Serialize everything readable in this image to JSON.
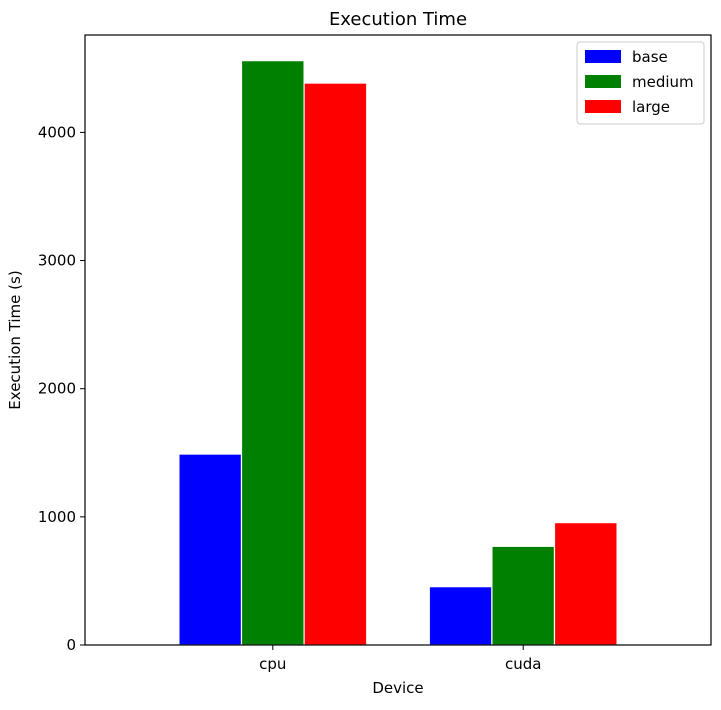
{
  "chart_data": {
    "type": "bar",
    "title": "Execution Time",
    "xlabel": "Device",
    "ylabel": "Execution Time (s)",
    "categories": [
      "cpu",
      "cuda"
    ],
    "series": [
      {
        "name": "base",
        "color": "#0000ff",
        "values": [
          1490,
          455
        ]
      },
      {
        "name": "medium",
        "color": "#008000",
        "values": [
          4560,
          770
        ]
      },
      {
        "name": "large",
        "color": "#ff0000",
        "values": [
          4385,
          955
        ]
      }
    ],
    "ylim": [
      0,
      4760
    ],
    "yticks": [
      0,
      1000,
      2000,
      3000,
      4000
    ],
    "grid": false,
    "legend_position": "top-right"
  }
}
